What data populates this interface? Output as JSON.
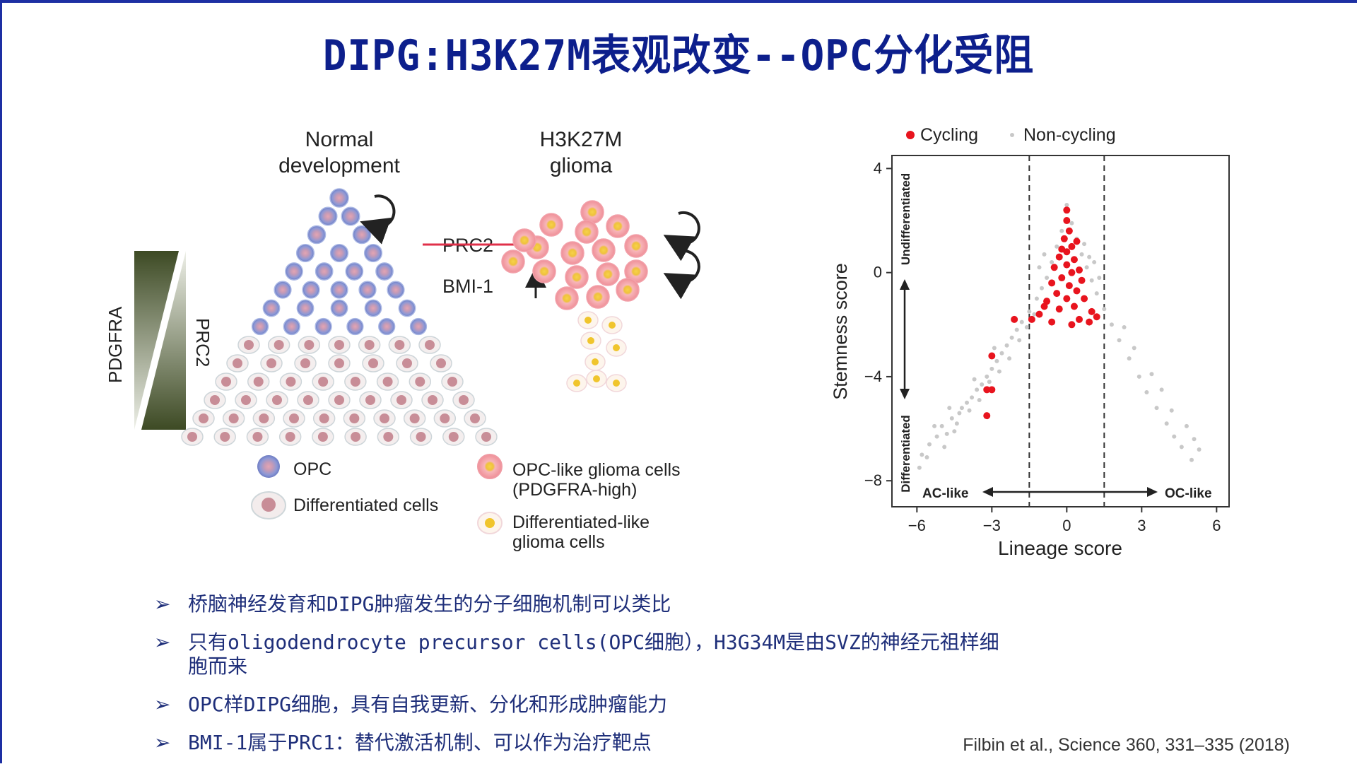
{
  "slide": {
    "title": "DIPG:H3K27M表观改变--OPC分化受阻"
  },
  "left_figure": {
    "normal_label_1": "Normal",
    "normal_label_2": "development",
    "glioma_label_1": "H3K27M",
    "glioma_label_2": "glioma",
    "pdgfra_label": "PDGFRA",
    "prc2_label": "PRC2",
    "prc2_strike_label": "PRC2",
    "bmi1_label": "BMI-1",
    "legend": {
      "opc": "OPC",
      "differentiated": "Differentiated cells",
      "opc_like_1": "OPC-like glioma cells",
      "opc_like_2": "(PDGFRA-high)",
      "diff_like_1": "Differentiated-like",
      "diff_like_2": "glioma cells"
    },
    "colors": {
      "opc_blue": "#7f8fd0",
      "diff_pink": "#c88d97",
      "glioma_pink": "#f4a6ad",
      "glioma_core": "#f0c52c",
      "prc2_strike": "#e0304a",
      "gradient_dark": "#3d4a24"
    }
  },
  "chart_data": {
    "type": "scatter",
    "title": "",
    "xlabel": "Lineage score",
    "ylabel": "Stemness score",
    "xlim": [
      -7,
      6.5
    ],
    "ylim": [
      -9,
      4.5
    ],
    "xticks": [
      "−6",
      "−3",
      "0",
      "3",
      "6"
    ],
    "xtick_values": [
      -6,
      -3,
      0,
      3,
      6
    ],
    "yticks": [
      "4",
      "0",
      "−4",
      "−8"
    ],
    "ytick_values": [
      4,
      0,
      -4,
      -8
    ],
    "dashed_lines_x": [
      -1.5,
      1.5
    ],
    "annotations": {
      "left_arrow": "AC-like",
      "right_arrow": "OC-like",
      "up": "Undifferentiated",
      "down": "Differentiated"
    },
    "legend": [
      {
        "name": "Cycling",
        "color": "#e8141e"
      },
      {
        "name": "Non-cycling",
        "color": "#c8c8c8"
      }
    ],
    "series": [
      {
        "name": "Cycling",
        "points": [
          [
            0,
            2.4
          ],
          [
            0,
            2
          ],
          [
            0.1,
            1.6
          ],
          [
            -0.1,
            1.3
          ],
          [
            0.2,
            1
          ],
          [
            0,
            0.8
          ],
          [
            -0.3,
            0.6
          ],
          [
            0.3,
            0.5
          ],
          [
            0,
            0.3
          ],
          [
            -0.5,
            0.2
          ],
          [
            0.5,
            0.1
          ],
          [
            0.2,
            0
          ],
          [
            -0.2,
            -0.2
          ],
          [
            0.6,
            -0.3
          ],
          [
            -0.6,
            -0.4
          ],
          [
            0.1,
            -0.5
          ],
          [
            0.4,
            -0.7
          ],
          [
            -0.4,
            -0.8
          ],
          [
            0,
            -1
          ],
          [
            0.7,
            -1
          ],
          [
            -0.8,
            -1.1
          ],
          [
            0.3,
            -1.3
          ],
          [
            -0.3,
            -1.4
          ],
          [
            1,
            -1.5
          ],
          [
            -1.1,
            -1.6
          ],
          [
            0.5,
            -1.8
          ],
          [
            -0.6,
            -1.9
          ],
          [
            0.2,
            -2
          ],
          [
            1.2,
            -1.7
          ],
          [
            -1.4,
            -1.8
          ],
          [
            -2.1,
            -1.8
          ],
          [
            -3,
            -3.2
          ],
          [
            -3.2,
            -4.5
          ],
          [
            -3,
            -4.5
          ],
          [
            -3.2,
            -5.5
          ],
          [
            0.9,
            -1.9
          ],
          [
            -0.9,
            -1.3
          ],
          [
            -0.2,
            0.9
          ],
          [
            0.4,
            1.2
          ]
        ]
      },
      {
        "name": "Non-cycling",
        "points": [
          [
            -5.8,
            -7
          ],
          [
            -5.5,
            -6.6
          ],
          [
            -5.2,
            -6.3
          ],
          [
            -5,
            -5.9
          ],
          [
            -4.8,
            -6.2
          ],
          [
            -4.6,
            -5.6
          ],
          [
            -4.4,
            -5.8
          ],
          [
            -4.2,
            -5.2
          ],
          [
            -4,
            -5
          ],
          [
            -3.8,
            -4.8
          ],
          [
            -3.6,
            -4.5
          ],
          [
            -3.4,
            -4.3
          ],
          [
            -3.2,
            -4
          ],
          [
            -3,
            -3.7
          ],
          [
            -2.8,
            -3.4
          ],
          [
            -2.6,
            -3.1
          ],
          [
            -2.4,
            -2.8
          ],
          [
            -2.2,
            -2.5
          ],
          [
            -2,
            -2.2
          ],
          [
            -1.8,
            -1.9
          ],
          [
            -1.5,
            -1.5
          ],
          [
            -1.2,
            -1
          ],
          [
            -1,
            -0.6
          ],
          [
            -0.8,
            -0.2
          ],
          [
            -0.6,
            0.4
          ],
          [
            -0.4,
            1
          ],
          [
            -0.2,
            1.6
          ],
          [
            0,
            2.6
          ],
          [
            0.2,
            1.9
          ],
          [
            0.4,
            1.3
          ],
          [
            0.6,
            0.7
          ],
          [
            0.8,
            0.2
          ],
          [
            1,
            -0.3
          ],
          [
            1.2,
            -0.8
          ],
          [
            1.5,
            -1.4
          ],
          [
            1.8,
            -2
          ],
          [
            2.1,
            -2.6
          ],
          [
            2.5,
            -3.3
          ],
          [
            2.9,
            -4
          ],
          [
            3.2,
            -4.6
          ],
          [
            3.6,
            -5.2
          ],
          [
            4,
            -5.8
          ],
          [
            4.3,
            -6.3
          ],
          [
            4.6,
            -6.7
          ],
          [
            5,
            -7.2
          ],
          [
            5.3,
            -6.8
          ],
          [
            -5.9,
            -7.5
          ],
          [
            -5.6,
            -7.1
          ],
          [
            -4.9,
            -6.7
          ],
          [
            -4.5,
            -6.1
          ],
          [
            -4.3,
            -5.4
          ],
          [
            -3.9,
            -5.3
          ],
          [
            -3.5,
            -4.9
          ],
          [
            -3.1,
            -4.2
          ],
          [
            -2.7,
            -3.8
          ],
          [
            -2.3,
            -3.3
          ],
          [
            -1.9,
            -2.6
          ],
          [
            -1.6,
            -2.1
          ],
          [
            -1.3,
            -1.6
          ],
          [
            0.9,
            0.6
          ],
          [
            0.7,
            1.1
          ],
          [
            1.1,
            0.4
          ],
          [
            1.3,
            -0.2
          ],
          [
            -1.1,
            0.2
          ],
          [
            -0.9,
            0.7
          ],
          [
            2.3,
            -2.1
          ],
          [
            2.7,
            -2.9
          ],
          [
            3.4,
            -3.9
          ],
          [
            3.8,
            -4.5
          ],
          [
            4.2,
            -5.3
          ],
          [
            4.8,
            -5.9
          ],
          [
            5.1,
            -6.4
          ],
          [
            -2.9,
            -2.9
          ],
          [
            -3.7,
            -4.1
          ],
          [
            -4.7,
            -5.2
          ],
          [
            -5.3,
            -5.9
          ]
        ]
      }
    ]
  },
  "bullets": [
    {
      "arrow": "➢",
      "text": "桥脑神经发育和DIPG肿瘤发生的分子细胞机制可以类比"
    },
    {
      "arrow": "➢",
      "text": "只有oligodendrocyte precursor cells(OPC细胞），H3G34M是由SVZ的神经元祖样细",
      "text_cont": "胞而来"
    },
    {
      "arrow": "➢",
      "text": "OPC样DIPG细胞，具有自我更新、分化和形成肿瘤能力"
    },
    {
      "arrow": "➢",
      "text": "BMI-1属于PRC1：替代激活机制、可以作为治疗靶点"
    }
  ],
  "citation": "Filbin et al., Science 360, 331–335 (2018)"
}
